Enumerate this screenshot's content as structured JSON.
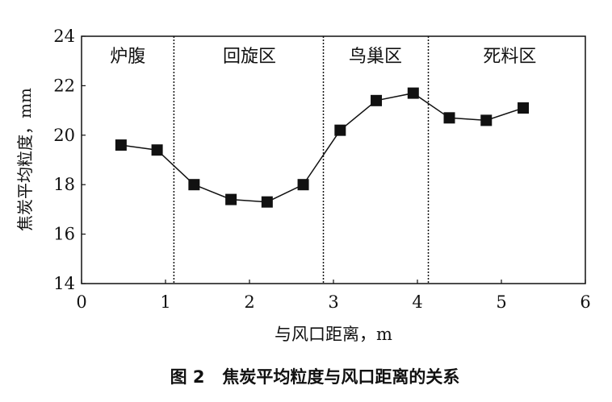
{
  "chart_data": {
    "type": "line",
    "title": "",
    "caption": "图 2   焦炭平均粒度与风口距离的关系",
    "xlabel": "与风口距离，m",
    "ylabel": "焦炭平均粒度，mm",
    "xlim": [
      0,
      6
    ],
    "ylim": [
      14,
      24
    ],
    "xticks": [
      "0",
      "1",
      "2",
      "3",
      "4",
      "5",
      "6"
    ],
    "yticks": [
      "14",
      "16",
      "18",
      "20",
      "22",
      "24"
    ],
    "x": [
      0.47,
      0.9,
      1.34,
      1.78,
      2.21,
      2.64,
      3.08,
      3.51,
      3.95,
      4.38,
      4.82,
      5.26
    ],
    "y": [
      19.6,
      19.4,
      18.0,
      17.4,
      17.3,
      18.0,
      20.2,
      21.4,
      21.7,
      20.7,
      20.6,
      21.1
    ],
    "marker": "square",
    "grid": false,
    "dividers": [
      1.1,
      2.88,
      4.13
    ],
    "zones": [
      {
        "label": "炉腹",
        "x": 0.55
      },
      {
        "label": "回旋区",
        "x": 2.0
      },
      {
        "label": "鸟巢区",
        "x": 3.5
      },
      {
        "label": "死料区",
        "x": 5.1
      }
    ]
  }
}
